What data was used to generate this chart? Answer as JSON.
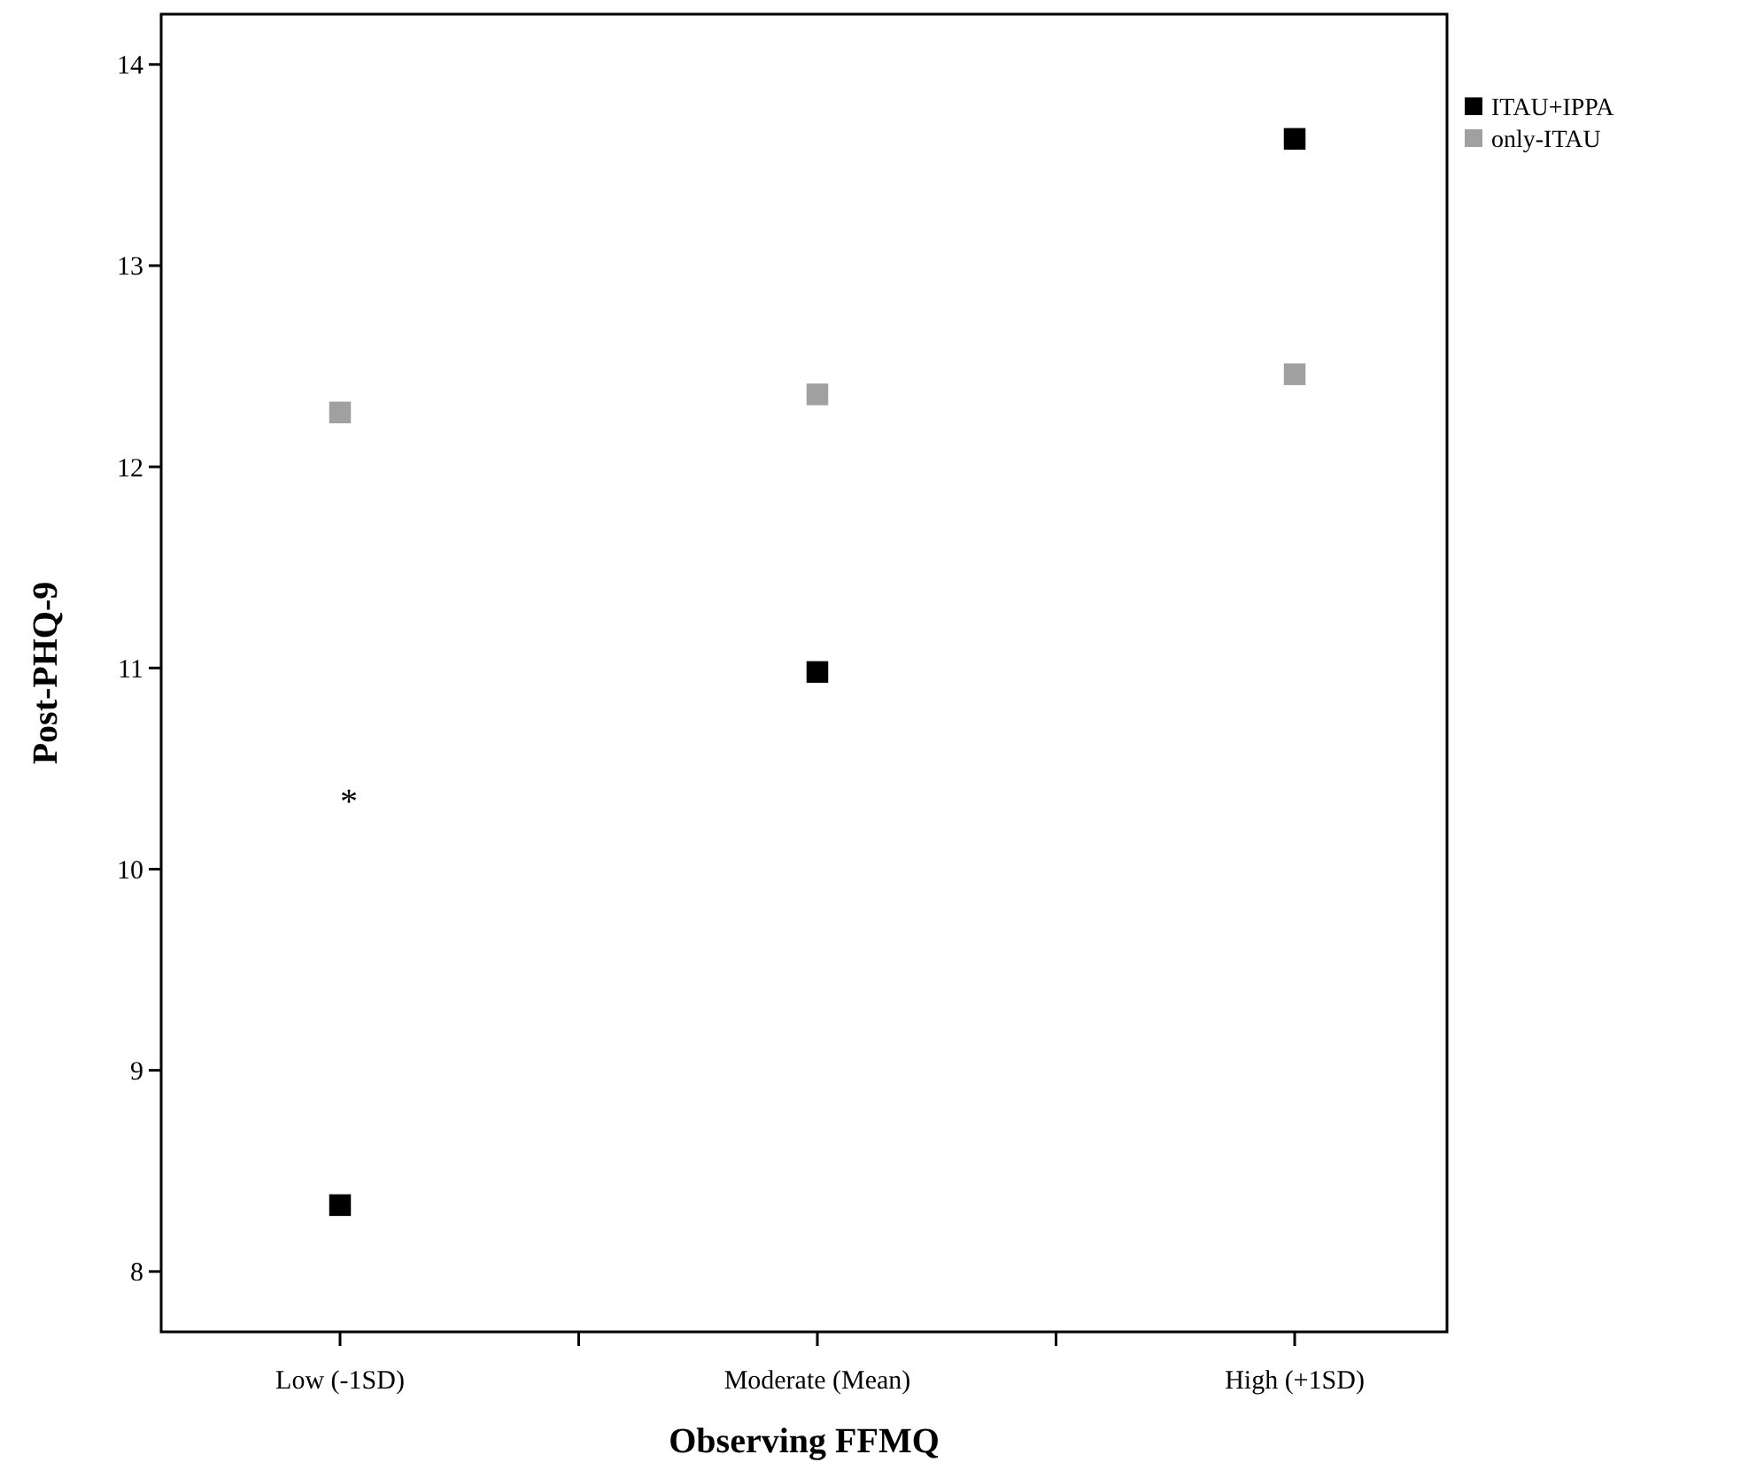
{
  "chart_data": {
    "type": "scatter",
    "xlabel": "Observing FFMQ",
    "ylabel": "Post-PHQ-9",
    "categories": [
      "Low (-1SD)",
      null,
      "Moderate (Mean)",
      null,
      "High (+1SD)"
    ],
    "series": [
      {
        "name": "ITAU+IPPA",
        "color": "#000000",
        "values": [
          8.33,
          null,
          10.98,
          null,
          13.63
        ]
      },
      {
        "name": "only-ITAU",
        "color": "#a0a0a0",
        "values": [
          12.27,
          null,
          12.36,
          null,
          12.46
        ]
      }
    ],
    "ylim": [
      7.7,
      14.25
    ],
    "yticks": [
      8,
      9,
      10,
      11,
      12,
      13,
      14
    ],
    "marker": "square",
    "grid": false,
    "legend": "top right",
    "annotations": [
      "*"
    ]
  }
}
